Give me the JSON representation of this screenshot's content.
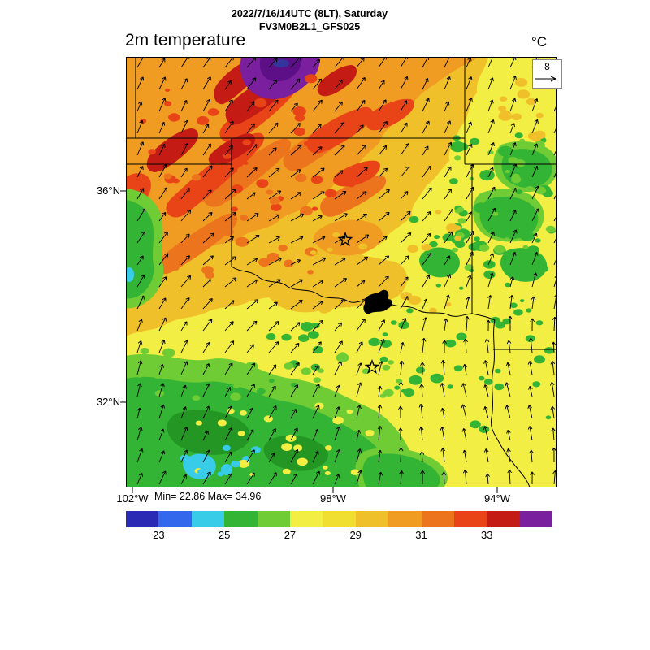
{
  "header": {
    "datetime": "2022/7/16/14UTC (8LT), Saturday",
    "model": "FV3M0B2L1_GFS025"
  },
  "plot": {
    "variable": "2m temperature",
    "units": "°C"
  },
  "wind_reference": {
    "value": "8"
  },
  "axes": {
    "lat_labels": [
      "36°N",
      "32°N"
    ],
    "lon_labels": [
      "102°W",
      "98°W",
      "94°W"
    ]
  },
  "stats": {
    "label": "Min= 22.86 Max= 34.96",
    "min": 22.86,
    "max": 34.96
  },
  "colorbar": {
    "tick_labels": [
      "23",
      "25",
      "27",
      "29",
      "31",
      "33"
    ],
    "segment_colors": [
      "#2a2ab4",
      "#3468ec",
      "#38cce8",
      "#34b434",
      "#70cc34",
      "#f2ee44",
      "#f0de30",
      "#f0c02a",
      "#f09c22",
      "#ec741c",
      "#e84418",
      "#c41c14",
      "#7a1f9e"
    ],
    "range_start": 22,
    "range_end": 35
  },
  "palette": {
    "yellow": "#f2ee44",
    "gold": "#f0c02a",
    "orange": "#f09c22",
    "deeporange": "#ec741c",
    "red": "#e84418",
    "darkred": "#c41c14",
    "purple": "#7a1f9e",
    "violet": "#5c0f86",
    "navy": "#34349c",
    "green": "#34b434",
    "lightgreen": "#70cc34",
    "darkgreen": "#239623",
    "cyan": "#38cce8",
    "blue": "#3468ec",
    "border": "#000000"
  }
}
